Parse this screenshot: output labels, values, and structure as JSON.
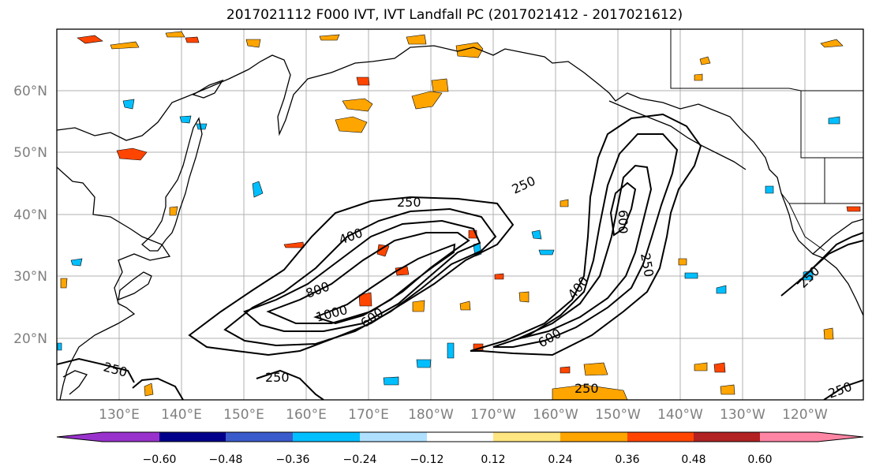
{
  "title": "2017021112 F000 IVT, IVT Landfall PC (2017021412 - 2017021612)",
  "map": {
    "lat_labels": [
      "60°N",
      "50°N",
      "40°N",
      "30°N",
      "20°N"
    ],
    "lon_labels": [
      "130°E",
      "140°E",
      "150°E",
      "160°E",
      "170°E",
      "180°W",
      "170°W",
      "160°W",
      "150°W",
      "140°W",
      "130°W",
      "120°W"
    ],
    "contour_labels": [
      "250",
      "250",
      "400",
      "800",
      "1000",
      "600",
      "250",
      "600",
      "400",
      "600",
      "250",
      "250",
      "250",
      "250",
      "250"
    ],
    "colors": {
      "land_outline": "#000000",
      "grid": "#b0b0b0",
      "label_gray": "#7f7f7f"
    }
  },
  "colorbar": {
    "ticks": [
      "−0.60",
      "−0.48",
      "−0.36",
      "−0.24",
      "−0.12",
      "0.12",
      "0.24",
      "0.36",
      "0.48",
      "0.60"
    ],
    "colors": [
      "#9932cc",
      "#00008b",
      "#3a5bcc",
      "#00bfff",
      "#b0e0ff",
      "#ffffff",
      "#ffe680",
      "#ffa500",
      "#ff4500",
      "#b22222",
      "#ff85a5"
    ]
  }
}
